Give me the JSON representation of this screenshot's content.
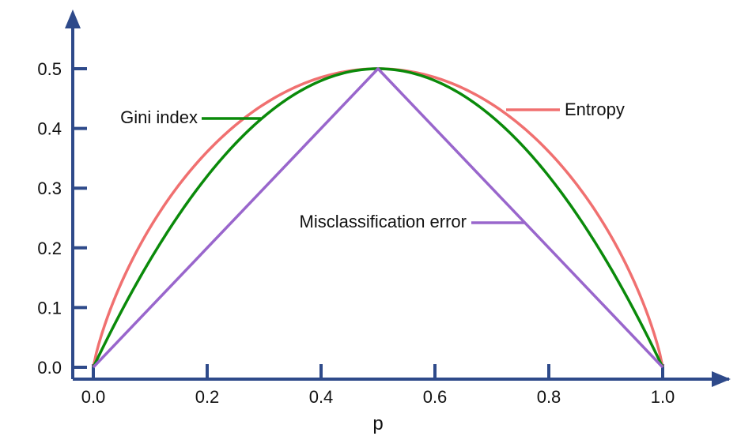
{
  "chart_data": {
    "type": "line",
    "xlabel": "p",
    "ylabel": "",
    "xlim": [
      0.0,
      1.0
    ],
    "ylim": [
      0.0,
      0.5
    ],
    "x_ticks": [
      "0.0",
      "0.2",
      "0.4",
      "0.6",
      "0.8",
      "1.0"
    ],
    "y_ticks": [
      "0.0",
      "0.1",
      "0.2",
      "0.3",
      "0.4",
      "0.5"
    ],
    "legend": "inline labels",
    "grid": false,
    "series": [
      {
        "name": "Entropy",
        "color": "#f07070",
        "x": [
          0.0,
          0.05,
          0.1,
          0.15,
          0.2,
          0.25,
          0.3,
          0.35,
          0.4,
          0.45,
          0.5,
          0.55,
          0.6,
          0.65,
          0.7,
          0.75,
          0.8,
          0.85,
          0.9,
          0.95,
          1.0
        ],
        "y": [
          0.0,
          0.143,
          0.234,
          0.305,
          0.361,
          0.406,
          0.441,
          0.467,
          0.485,
          0.496,
          0.5,
          0.496,
          0.485,
          0.467,
          0.441,
          0.406,
          0.361,
          0.305,
          0.234,
          0.143,
          0.0
        ]
      },
      {
        "name": "Gini index",
        "color": "#0a8a0a",
        "x": [
          0.0,
          0.05,
          0.1,
          0.15,
          0.2,
          0.25,
          0.3,
          0.35,
          0.4,
          0.45,
          0.5,
          0.55,
          0.6,
          0.65,
          0.7,
          0.75,
          0.8,
          0.85,
          0.9,
          0.95,
          1.0
        ],
        "y": [
          0.0,
          0.095,
          0.18,
          0.255,
          0.32,
          0.375,
          0.42,
          0.455,
          0.48,
          0.495,
          0.5,
          0.495,
          0.48,
          0.455,
          0.42,
          0.375,
          0.32,
          0.255,
          0.18,
          0.095,
          0.0
        ]
      },
      {
        "name": "Misclassification error",
        "color": "#9966cc",
        "x": [
          0.0,
          0.5,
          1.0
        ],
        "y": [
          0.0,
          0.5,
          0.0
        ]
      }
    ],
    "axis_color": "#2e4a8a"
  }
}
